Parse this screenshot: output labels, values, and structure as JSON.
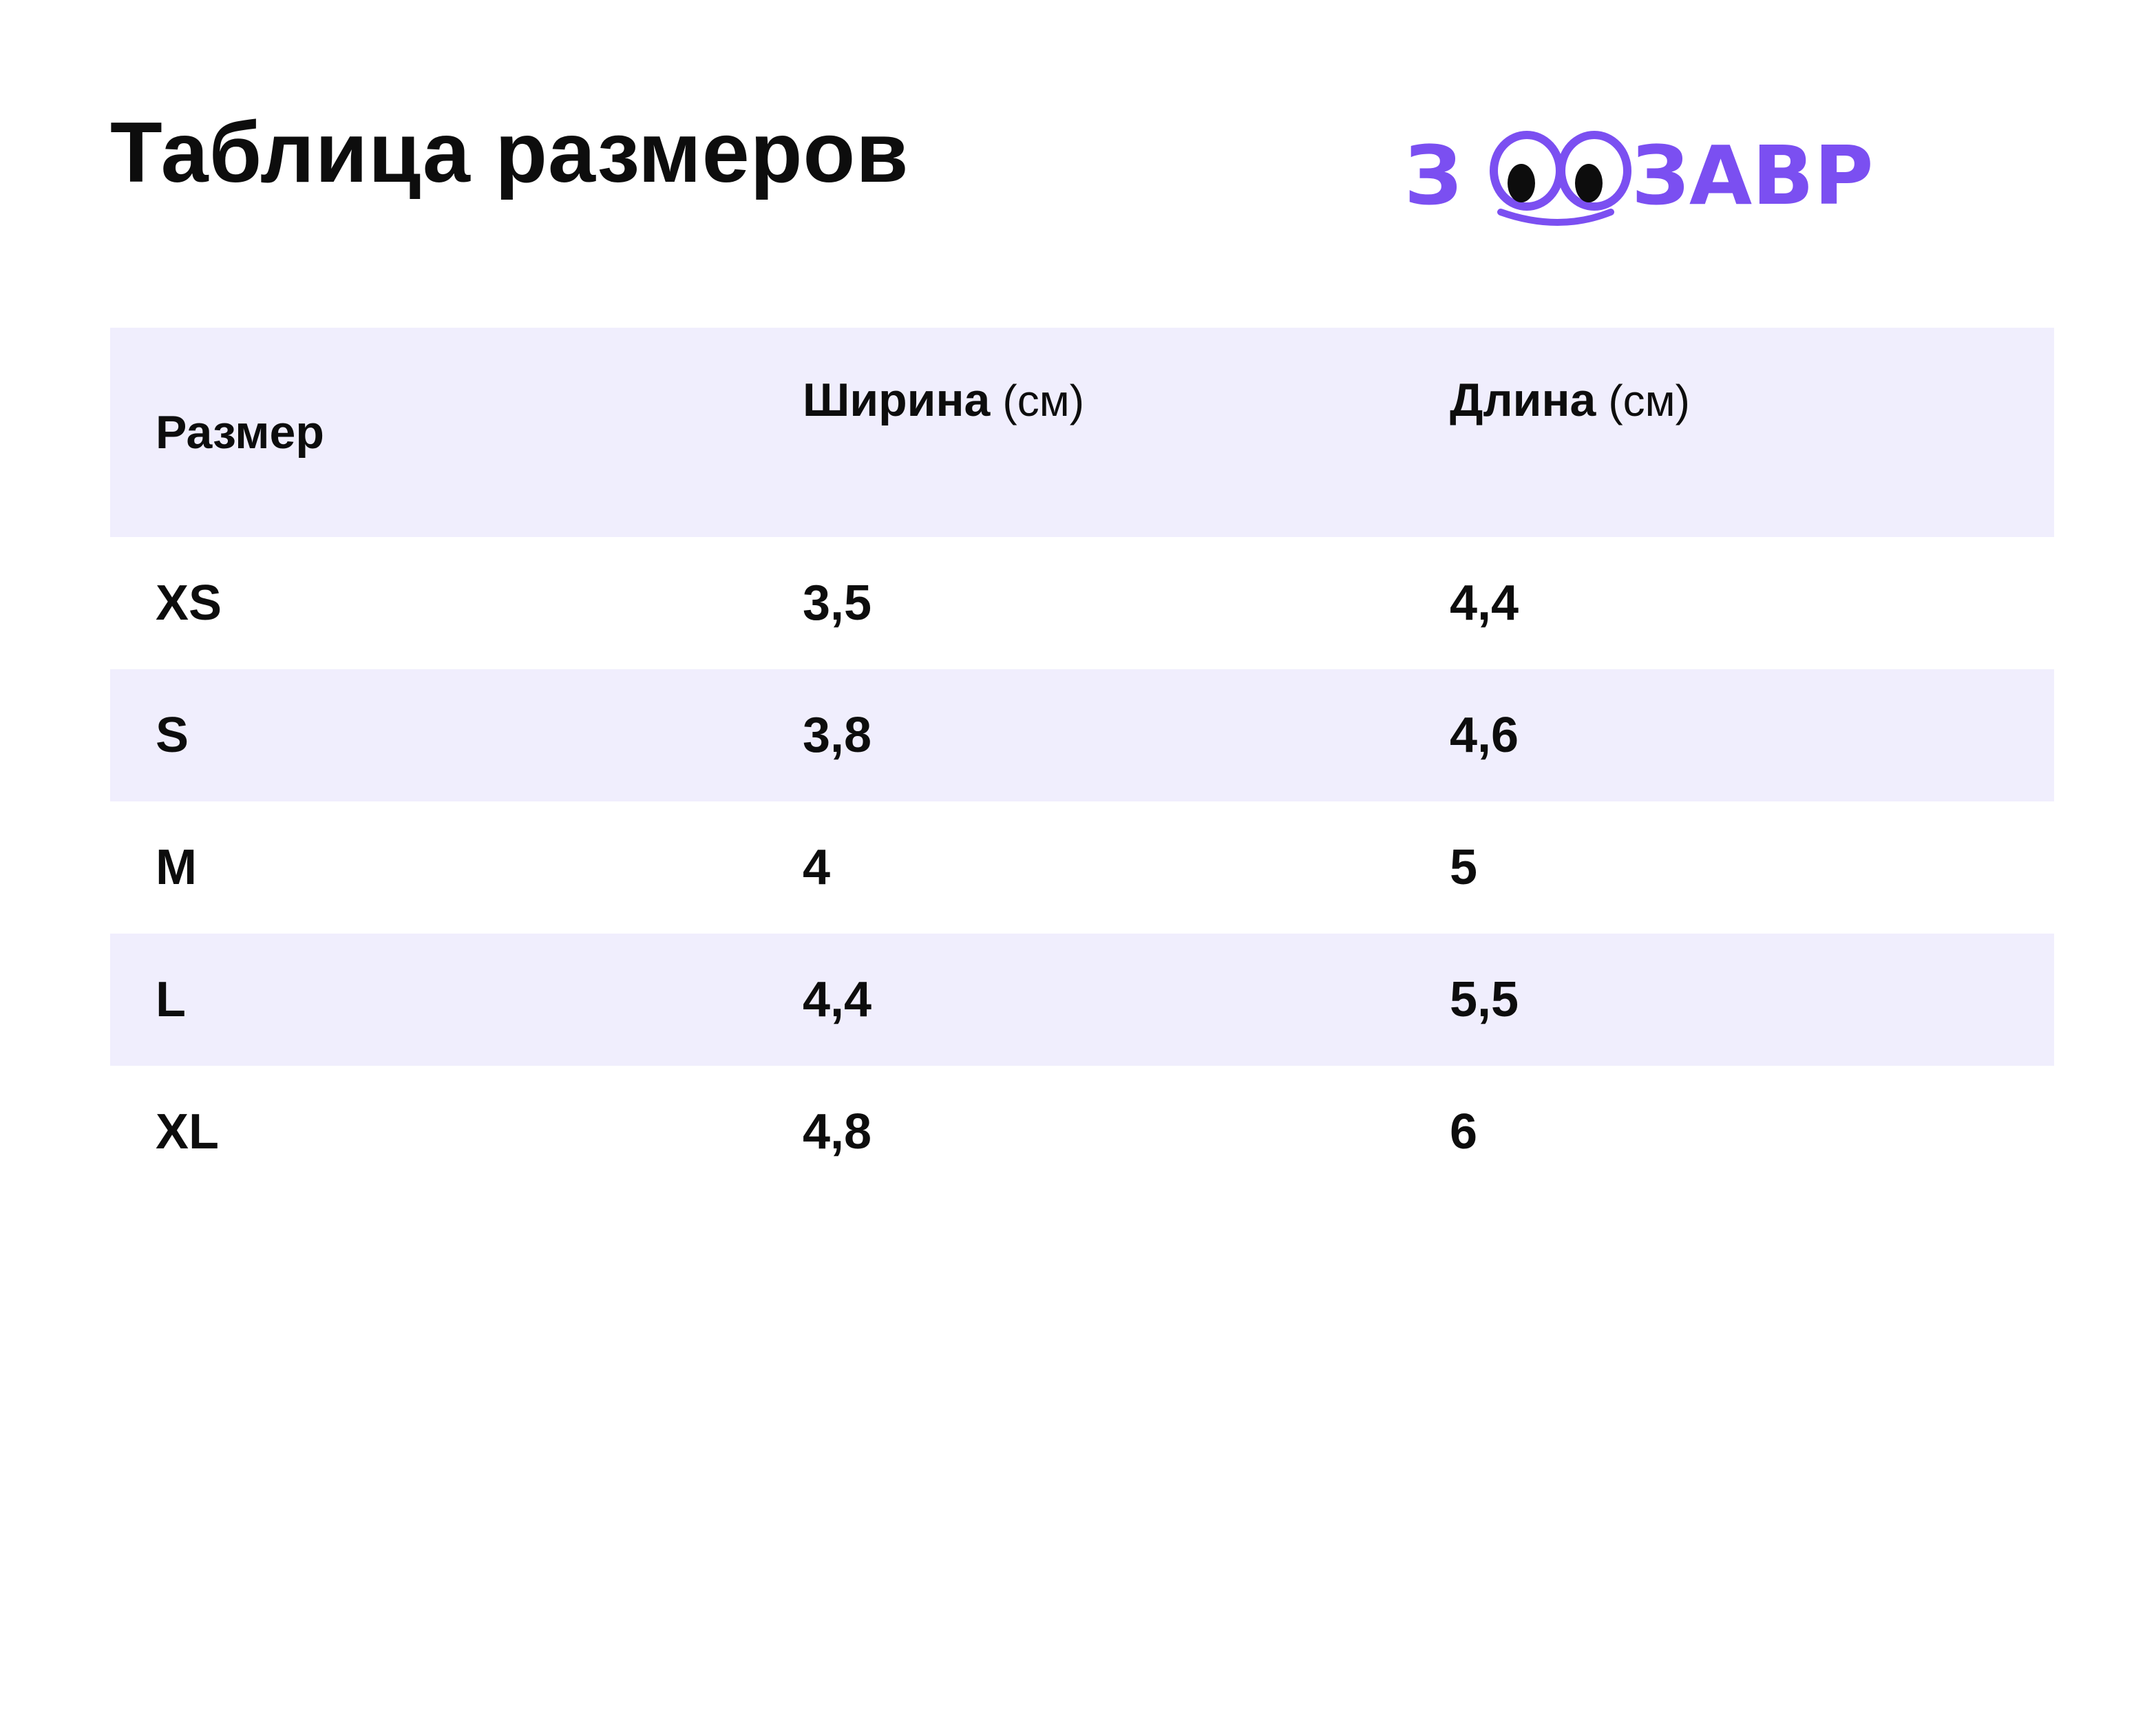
{
  "title": "Таблица размеров",
  "logo": {
    "text": "ЗООЗАВР",
    "accent_color": "#7b4ff1"
  },
  "table": {
    "headers": {
      "size": "Размер",
      "width": "Ширина",
      "width_unit": "(см)",
      "length": "Длина",
      "length_unit": "(см)"
    },
    "rows": [
      {
        "size": "XS",
        "width": "3,5",
        "length": "4,4"
      },
      {
        "size": "S",
        "width": "3,8",
        "length": "4,6"
      },
      {
        "size": "M",
        "width": "4",
        "length": "5"
      },
      {
        "size": "L",
        "width": "4,4",
        "length": "5,5"
      },
      {
        "size": "XL",
        "width": "4,8",
        "length": "6"
      }
    ],
    "row_shade_color": "#f0eefd"
  }
}
